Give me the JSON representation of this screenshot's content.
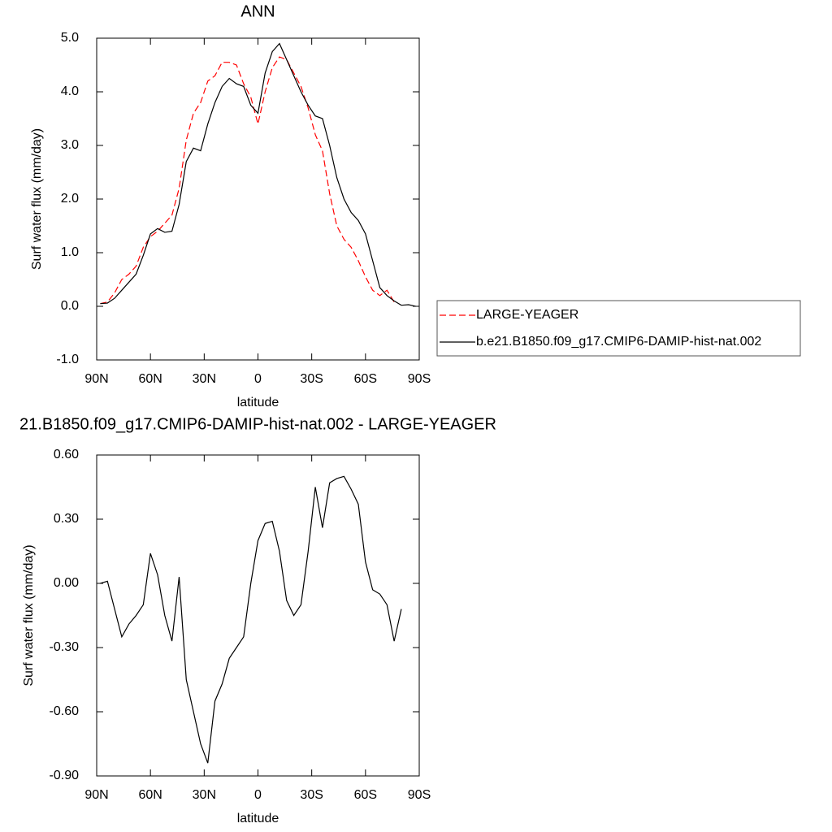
{
  "chart_data": [
    {
      "type": "line",
      "title": "ANN",
      "xlabel": "latitude",
      "ylabel": "Surf water flux (mm/day)",
      "x": [
        88,
        84,
        80,
        76,
        72,
        68,
        64,
        60,
        56,
        52,
        48,
        44,
        40,
        36,
        32,
        28,
        24,
        20,
        16,
        12,
        8,
        4,
        0,
        -4,
        -8,
        -12,
        -16,
        -20,
        -24,
        -28,
        -32,
        -36,
        -40,
        -44,
        -48,
        -52,
        -56,
        -60,
        -64,
        -68,
        -72,
        -76,
        -80,
        -84,
        -88
      ],
      "series": [
        {
          "name": "LARGE-YEAGER",
          "color": "#ff0000",
          "line_style": "dashed",
          "values": [
            0.05,
            0.08,
            0.25,
            0.5,
            0.6,
            0.75,
            1.1,
            1.3,
            1.4,
            1.55,
            1.7,
            2.2,
            3.1,
            3.6,
            3.8,
            4.2,
            4.3,
            4.55,
            4.55,
            4.5,
            4.15,
            3.9,
            3.4,
            4.0,
            4.45,
            4.65,
            4.6,
            4.35,
            4.1,
            3.7,
            3.2,
            2.9,
            2.1,
            1.5,
            1.25,
            1.1,
            0.85,
            0.55,
            0.3,
            0.2,
            0.3,
            0.08,
            null,
            null,
            null
          ]
        },
        {
          "name": "b.e21.B1850.f09_g17.CMIP6-DAMIP-hist-nat.002",
          "color": "#000000",
          "line_style": "solid",
          "values": [
            0.05,
            0.06,
            0.15,
            0.3,
            0.45,
            0.6,
            0.95,
            1.35,
            1.45,
            1.38,
            1.4,
            1.9,
            2.7,
            2.95,
            2.9,
            3.4,
            3.8,
            4.1,
            4.25,
            4.15,
            4.1,
            3.75,
            3.6,
            4.35,
            4.75,
            4.9,
            4.6,
            4.3,
            4.0,
            3.75,
            3.55,
            3.5,
            3.0,
            2.4,
            2.0,
            1.75,
            1.6,
            1.35,
            0.85,
            0.35,
            0.2,
            0.1,
            0.02,
            0.03,
            0.0
          ]
        }
      ],
      "xlim": [
        90,
        -90
      ],
      "xticks": [
        {
          "value": 90,
          "label": "90N"
        },
        {
          "value": 60,
          "label": "60N"
        },
        {
          "value": 30,
          "label": "30N"
        },
        0,
        {
          "value": -30,
          "label": "30S"
        },
        {
          "value": -60,
          "label": "60S"
        },
        {
          "value": -90,
          "label": "90S"
        }
      ],
      "ylim": [
        -1.0,
        5.0
      ],
      "yticks": [
        {
          "value": -1,
          "label": "-1.0"
        },
        {
          "value": 0,
          "label": "0.0"
        },
        {
          "value": 1,
          "label": "1.0"
        },
        {
          "value": 2,
          "label": "2.0"
        },
        {
          "value": 3,
          "label": "3.0"
        },
        {
          "value": 4,
          "label": "4.0"
        },
        {
          "value": 5,
          "label": "5.0"
        }
      ],
      "legend": "right"
    },
    {
      "type": "line",
      "title": "21.B1850.f09_g17.CMIP6-DAMIP-hist-nat.002 - LARGE-YEAGER",
      "xlabel": "latitude",
      "ylabel": "Surf water flux (mm/day)",
      "x": [
        88,
        84,
        80,
        76,
        72,
        68,
        64,
        60,
        56,
        52,
        48,
        44,
        40,
        36,
        32,
        28,
        24,
        20,
        16,
        12,
        8,
        4,
        0,
        -4,
        -8,
        -12,
        -16,
        -20,
        -24,
        -28,
        -32,
        -36,
        -40,
        -44,
        -48,
        -52,
        -56,
        -60,
        -64,
        -68,
        -72,
        -76,
        -80,
        -84,
        -88
      ],
      "color": "#000000",
      "values": [
        0.0,
        0.01,
        -0.12,
        -0.25,
        -0.19,
        -0.15,
        -0.1,
        0.14,
        0.04,
        -0.15,
        -0.27,
        0.03,
        -0.45,
        -0.6,
        -0.75,
        -0.84,
        -0.55,
        -0.47,
        -0.35,
        -0.3,
        -0.25,
        0.0,
        0.2,
        0.28,
        0.29,
        0.15,
        -0.08,
        -0.15,
        -0.1,
        0.15,
        0.45,
        0.26,
        0.47,
        0.49,
        0.5,
        0.44,
        0.37,
        0.1,
        -0.03,
        -0.05,
        -0.1,
        -0.27,
        -0.12,
        null,
        null
      ],
      "xlim": [
        90,
        -90
      ],
      "xticks": [
        {
          "value": 90,
          "label": "90N"
        },
        {
          "value": 60,
          "label": "60N"
        },
        {
          "value": 30,
          "label": "30N"
        },
        0,
        {
          "value": -30,
          "label": "30S"
        },
        {
          "value": -60,
          "label": "60S"
        },
        {
          "value": -90,
          "label": "90S"
        }
      ],
      "ylim": [
        -0.9,
        0.6
      ],
      "yticks": [
        {
          "value": -0.9,
          "label": "-0.90"
        },
        {
          "value": -0.6,
          "label": "-0.60"
        },
        {
          "value": -0.3,
          "label": "-0.30"
        },
        {
          "value": 0,
          "label": "0.00"
        },
        {
          "value": 0.3,
          "label": "0.30"
        },
        {
          "value": 0.6,
          "label": "0.60"
        }
      ]
    }
  ]
}
